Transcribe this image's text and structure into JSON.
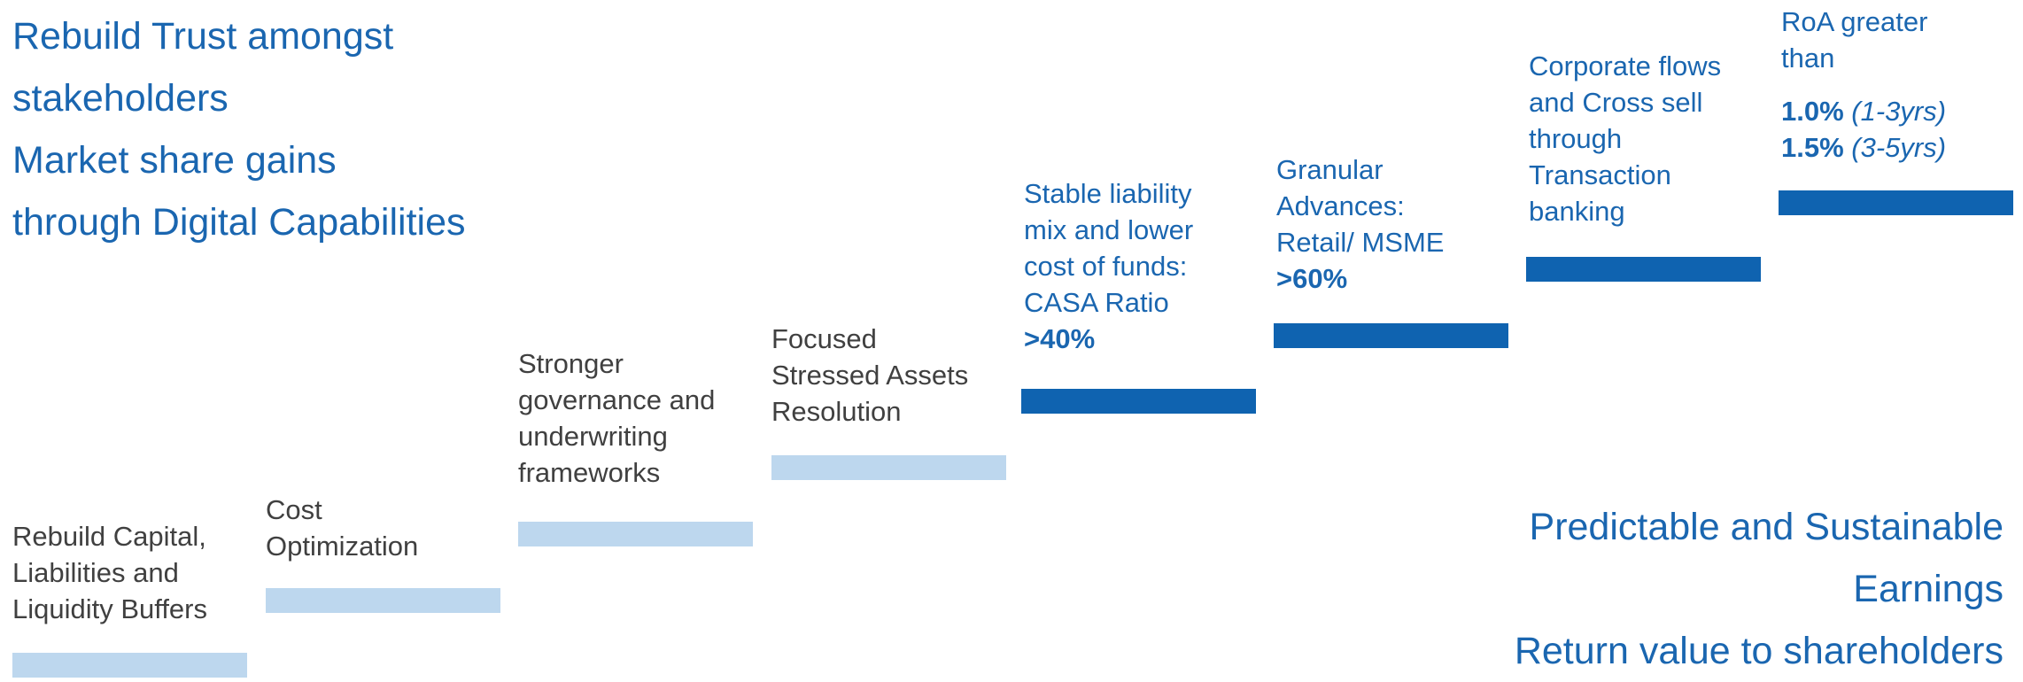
{
  "headline_top": {
    "lines": [
      "Rebuild Trust amongst",
      "stakeholders",
      "Market share gains",
      "through Digital Capabilities"
    ]
  },
  "steps": [
    {
      "tone": "light",
      "lines": [
        "Rebuild Capital,",
        "Liabilities and",
        "Liquidity Buffers"
      ]
    },
    {
      "tone": "light",
      "lines": [
        "Cost",
        "Optimization"
      ]
    },
    {
      "tone": "light",
      "lines": [
        "Stronger",
        "governance and",
        "underwriting",
        "frameworks"
      ]
    },
    {
      "tone": "light",
      "lines": [
        "Focused",
        "Stressed Assets",
        "Resolution"
      ]
    },
    {
      "tone": "dark",
      "lines": [
        "Stable liability",
        "mix and lower",
        "cost of funds:",
        "CASA Ratio"
      ],
      "highlight": ">40%"
    },
    {
      "tone": "dark",
      "lines": [
        "Granular",
        "Advances:",
        "Retail/ MSME"
      ],
      "highlight": ">60%"
    },
    {
      "tone": "dark",
      "lines": [
        "Corporate flows",
        "and Cross sell",
        "through",
        "Transaction",
        "banking"
      ]
    },
    {
      "tone": "dark",
      "lines": [
        "RoA  greater",
        "than"
      ],
      "targets": [
        {
          "value": "1.0%",
          "period": "(1-3yrs)"
        },
        {
          "value": "1.5%",
          "period": "(3-5yrs)"
        }
      ]
    }
  ],
  "headline_bottom": {
    "lines": [
      "Predictable and Sustainable",
      "Earnings",
      "Return value to shareholders"
    ]
  },
  "colors": {
    "accent_text": "#1a66b0",
    "bar_light": "#bdd7ee",
    "bar_dark": "#0f63b0",
    "label_gray": "#404040"
  }
}
